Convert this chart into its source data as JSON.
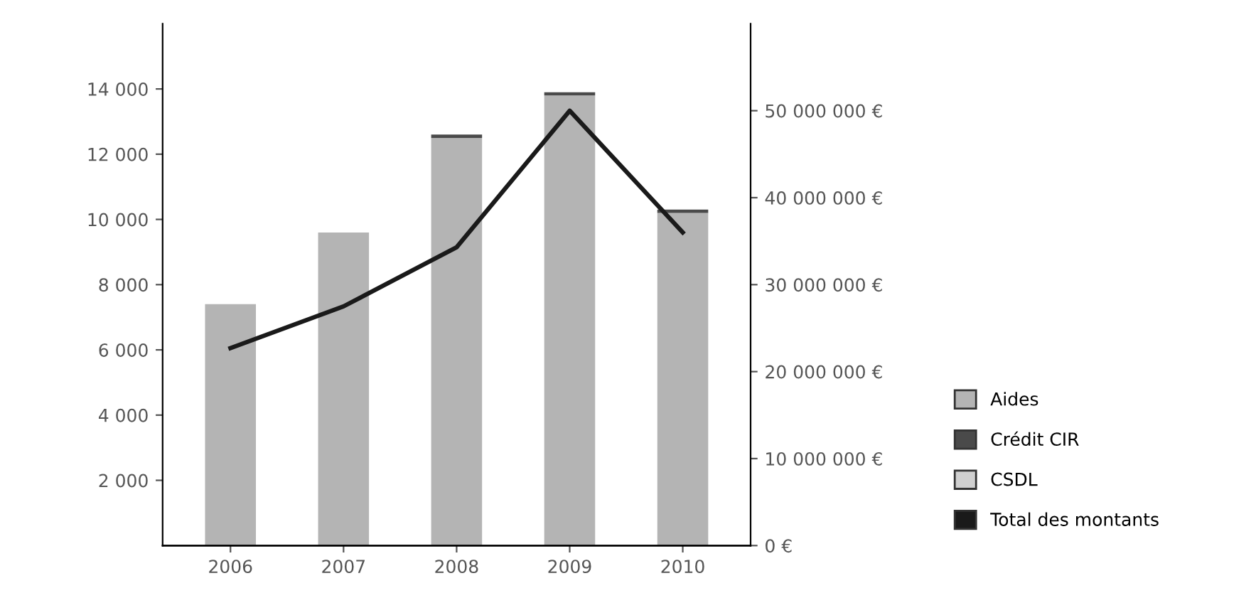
{
  "chart_data": {
    "type": "bar",
    "stacked": true,
    "categories": [
      "2006",
      "2007",
      "2008",
      "2009",
      "2010"
    ],
    "series": [
      {
        "name": "Aides",
        "color": "#b4b4b4",
        "values": [
          7400,
          9600,
          12500,
          13800,
          10200
        ]
      },
      {
        "name": "Crédit CIR",
        "color": "#4a4a4a",
        "values": [
          null,
          null,
          100,
          100,
          100
        ]
      },
      {
        "name": "CSDL",
        "color": "#d0d0d0",
        "values": [
          null,
          null,
          null,
          null,
          null
        ]
      },
      {
        "name": "Total des montants",
        "type": "line",
        "axis": "y2",
        "color": "#1a1a1a",
        "values": [
          22700000,
          27500000,
          34300000,
          50000000,
          36000000
        ]
      }
    ],
    "ylim": [
      0,
      16000
    ],
    "yticks": [
      {
        "value": 2000,
        "label": "2 000"
      },
      {
        "value": 4000,
        "label": "4 000"
      },
      {
        "value": 6000,
        "label": "6 000"
      },
      {
        "value": 8000,
        "label": "8 000"
      },
      {
        "value": 10000,
        "label": "10 000"
      },
      {
        "value": 12000,
        "label": "12 000"
      },
      {
        "value": 14000,
        "label": "14 000"
      }
    ],
    "y2lim": [
      0,
      60000000
    ],
    "y2ticks": [
      {
        "value": 0,
        "label": "0 €"
      },
      {
        "value": 10000000,
        "label": "10 000 000 €"
      },
      {
        "value": 20000000,
        "label": "20 000 000 €"
      },
      {
        "value": 30000000,
        "label": "30 000 000 €"
      },
      {
        "value": 40000000,
        "label": "40 000 000 €"
      },
      {
        "value": 50000000,
        "label": "50 000 000 €"
      }
    ],
    "grid": false,
    "legend": "right",
    "marker": "none",
    "line_style": "solid"
  }
}
